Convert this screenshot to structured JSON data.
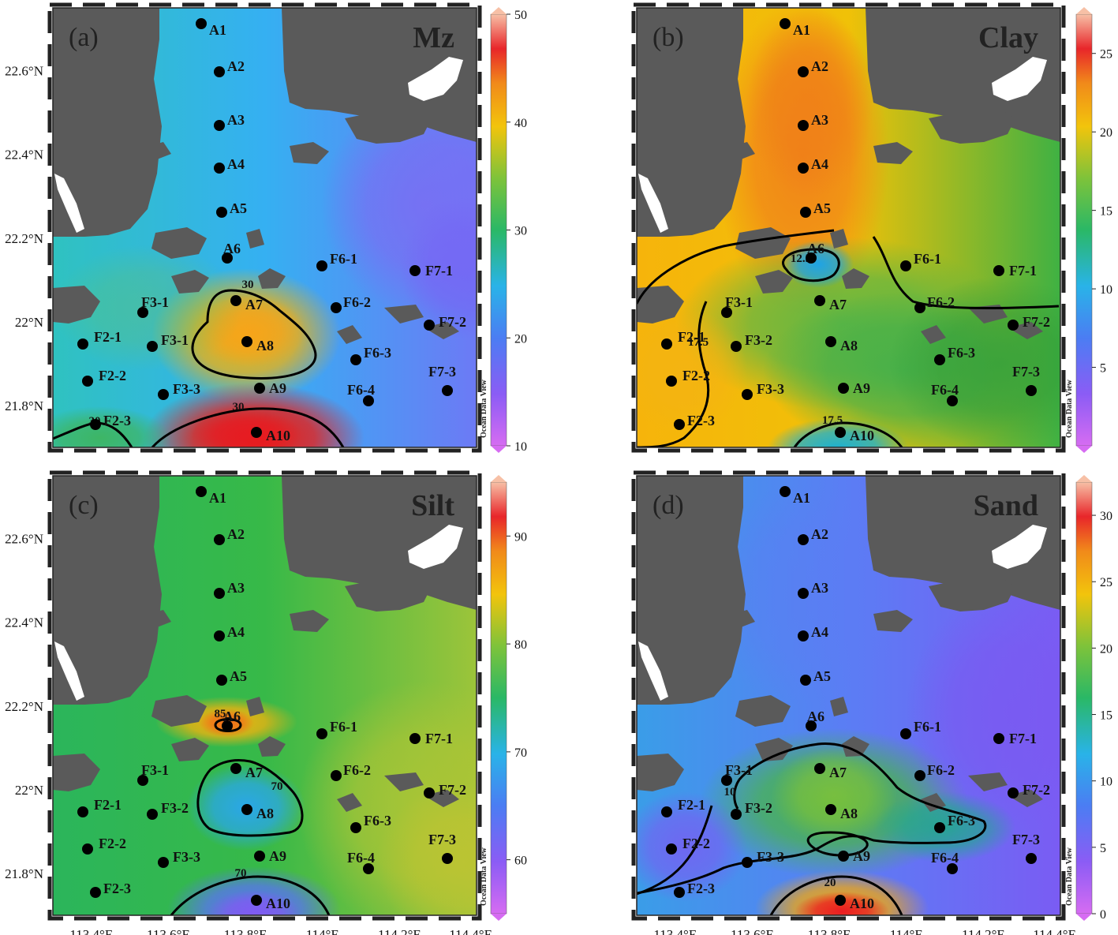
{
  "figure": {
    "lat_labels": [
      "22.6°N",
      "22.4°N",
      "22.2°N",
      "22°N",
      "21.8°N"
    ],
    "lon_labels": [
      "113.4°E",
      "113.6°E",
      "113.8°E",
      "114°E",
      "114.2°E",
      "114.4°E"
    ],
    "colorbar_caption": "Ocean Data View",
    "land_color": "#5a5a5a"
  },
  "stations": [
    "A1",
    "A2",
    "A3",
    "A4",
    "A5",
    "A6",
    "A7",
    "A8",
    "A9",
    "A10",
    "F2-1",
    "F2-2",
    "F2-3",
    "F3-1",
    "F3-2",
    "F3-3",
    "F6-1",
    "F6-2",
    "F6-3",
    "F6-4",
    "F7-1",
    "F7-2",
    "F7-3"
  ],
  "chart_data": [
    {
      "type": "heatmap",
      "letter": "(a)",
      "title": "Mz",
      "colorbar": {
        "min": 10,
        "max": 50,
        "ticks": [
          "50",
          "40",
          "30",
          "20",
          "10"
        ]
      },
      "station_labels": {
        "F3-2": "F3-1"
      },
      "contours": [
        {
          "label": "30"
        },
        {
          "label": "30"
        },
        {
          "label": "30"
        }
      ]
    },
    {
      "type": "heatmap",
      "letter": "(b)",
      "title": "Clay",
      "colorbar": {
        "min": 0,
        "max": 27.5,
        "ticks": [
          "25",
          "20",
          "15",
          "10",
          "5"
        ]
      },
      "station_labels": {},
      "contours": [
        {
          "label": "12.5"
        },
        {
          "label": "17.5"
        },
        {
          "label": "17.5"
        },
        {
          "label": "12.5"
        }
      ]
    },
    {
      "type": "heatmap",
      "letter": "(c)",
      "title": "Silt",
      "colorbar": {
        "min": 55,
        "max": 95,
        "ticks": [
          "90",
          "80",
          "70",
          "60"
        ]
      },
      "station_labels": {},
      "contours": [
        {
          "label": "85"
        },
        {
          "label": "70"
        },
        {
          "label": "70"
        }
      ]
    },
    {
      "type": "heatmap",
      "letter": "(d)",
      "title": "Sand",
      "colorbar": {
        "min": 0,
        "max": 32.5,
        "ticks": [
          "30",
          "25",
          "20",
          "15",
          "10",
          "5",
          "0"
        ]
      },
      "station_labels": {},
      "contours": [
        {
          "label": "10"
        },
        {
          "label": "20"
        },
        {
          "label": "10"
        },
        {
          "label": "20"
        }
      ]
    }
  ]
}
